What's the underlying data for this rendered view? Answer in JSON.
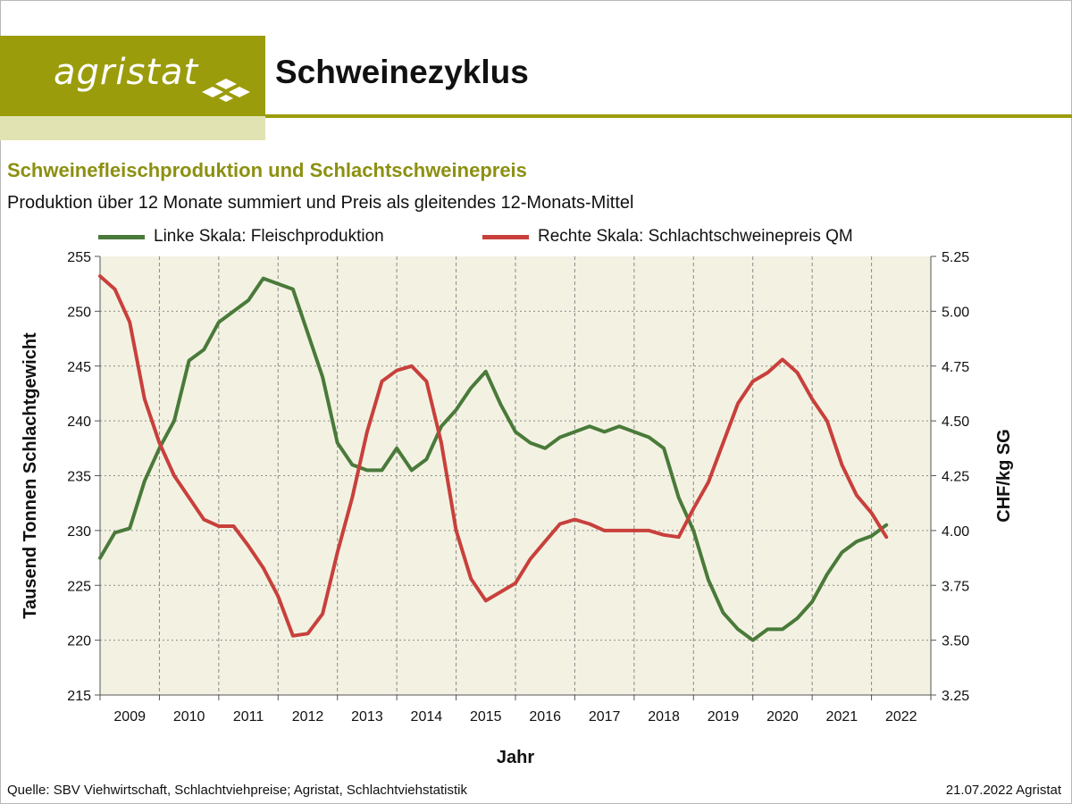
{
  "header": {
    "logo_text": "agristat",
    "page_title": "Schweinezyklus"
  },
  "colors": {
    "brand": "#9b9c0c",
    "brand_light": "#e2e3b3",
    "production": "#4a7a3a",
    "price": "#c8403c",
    "plot_background": "#f3f2e2"
  },
  "footer": {
    "source": "Quelle: SBV Viehwirtschaft, Schlachtviehpreise; Agristat, Schlachtviehstatistik",
    "date": "21.07.2022 Agristat"
  },
  "chart_data": {
    "type": "line",
    "title": "Schweinefleischproduktion und Schlachtschweinepreis",
    "subtitle": "Produktion über 12 Monate summiert und Preis als gleitendes 12-Monats-Mittel",
    "xlabel": "Jahr",
    "ylabel": "Tausend Tonnen Schlachtgewicht",
    "y2label": "CHF/kg SG",
    "categories": [
      "2009",
      "2010",
      "2011",
      "2012",
      "2013",
      "2014",
      "2015",
      "2016",
      "2017",
      "2018",
      "2019",
      "2020",
      "2021",
      "2022"
    ],
    "ylim": [
      215,
      255
    ],
    "y_ticks": [
      "215",
      "220",
      "225",
      "230",
      "235",
      "240",
      "245",
      "250",
      "255"
    ],
    "y2lim": [
      3.25,
      5.25
    ],
    "y2_ticks": [
      "3.25",
      "3.50",
      "3.75",
      "4.00",
      "4.25",
      "4.50",
      "4.75",
      "5.00",
      "5.25"
    ],
    "grid": true,
    "legend_position": "top",
    "series": [
      {
        "name": "Linke Skala: Fleischproduktion",
        "axis": "left",
        "x": [
          2009.0,
          2009.25,
          2009.5,
          2009.75,
          2010.0,
          2010.25,
          2010.5,
          2010.75,
          2011.0,
          2011.25,
          2011.5,
          2011.75,
          2012.0,
          2012.25,
          2012.5,
          2012.75,
          2013.0,
          2013.25,
          2013.5,
          2013.75,
          2014.0,
          2014.25,
          2014.5,
          2014.75,
          2015.0,
          2015.25,
          2015.5,
          2015.75,
          2016.0,
          2016.25,
          2016.5,
          2016.75,
          2017.0,
          2017.25,
          2017.5,
          2017.75,
          2018.0,
          2018.25,
          2018.5,
          2018.75,
          2019.0,
          2019.25,
          2019.5,
          2019.75,
          2020.0,
          2020.25,
          2020.5,
          2020.75,
          2021.0,
          2021.25,
          2021.5,
          2021.75,
          2022.0,
          2022.25
        ],
        "values": [
          227.5,
          229.8,
          230.2,
          234.5,
          237.5,
          240.0,
          245.5,
          246.5,
          249.0,
          250.0,
          251.0,
          253.0,
          252.5,
          252.0,
          248.0,
          244.0,
          238.0,
          236.0,
          235.5,
          235.5,
          237.5,
          235.5,
          236.5,
          239.5,
          241.0,
          243.0,
          244.5,
          241.5,
          239.0,
          238.0,
          237.5,
          238.5,
          239.0,
          239.5,
          239.0,
          239.5,
          239.0,
          238.5,
          237.5,
          233.0,
          230.0,
          225.5,
          222.5,
          221.0,
          220.0,
          221.0,
          221.0,
          222.0,
          223.5,
          226.0,
          228.0,
          229.0,
          229.5,
          230.5
        ],
        "color": "#4a7a3a"
      },
      {
        "name": "Rechte Skala: Schlachtschweinepreis QM",
        "axis": "right",
        "x": [
          2009.0,
          2009.25,
          2009.5,
          2009.75,
          2010.0,
          2010.25,
          2010.5,
          2010.75,
          2011.0,
          2011.25,
          2011.5,
          2011.75,
          2012.0,
          2012.25,
          2012.5,
          2012.75,
          2013.0,
          2013.25,
          2013.5,
          2013.75,
          2014.0,
          2014.25,
          2014.5,
          2014.75,
          2015.0,
          2015.25,
          2015.5,
          2015.75,
          2016.0,
          2016.25,
          2016.5,
          2016.75,
          2017.0,
          2017.25,
          2017.5,
          2017.75,
          2018.0,
          2018.25,
          2018.5,
          2018.75,
          2019.0,
          2019.25,
          2019.5,
          2019.75,
          2020.0,
          2020.25,
          2020.5,
          2020.75,
          2021.0,
          2021.25,
          2021.5,
          2021.75,
          2022.0,
          2022.25
        ],
        "values": [
          5.16,
          5.1,
          4.95,
          4.6,
          4.4,
          4.25,
          4.15,
          4.05,
          4.02,
          4.02,
          3.93,
          3.83,
          3.7,
          3.52,
          3.53,
          3.62,
          3.9,
          4.15,
          4.45,
          4.68,
          4.73,
          4.75,
          4.68,
          4.4,
          4.0,
          3.78,
          3.68,
          3.72,
          3.76,
          3.87,
          3.95,
          4.03,
          4.05,
          4.03,
          4.0,
          4.0,
          4.0,
          4.0,
          3.98,
          3.97,
          4.1,
          4.22,
          4.4,
          4.58,
          4.68,
          4.72,
          4.78,
          4.72,
          4.6,
          4.5,
          4.3,
          4.16,
          4.08,
          3.97
        ],
        "color": "#c8403c"
      }
    ]
  }
}
